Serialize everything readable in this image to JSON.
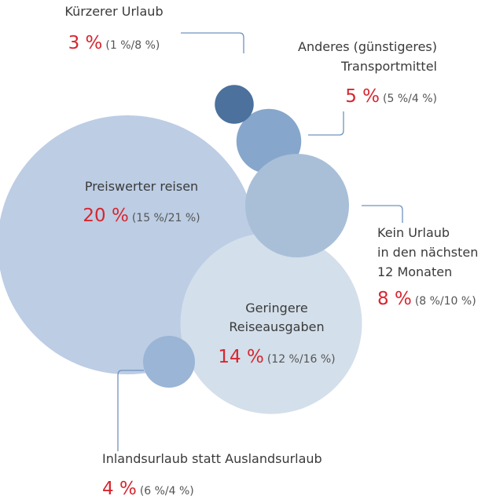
{
  "chart_data": {
    "type": "bubble",
    "items": [
      {
        "label": [
          "Preiswerter reisen"
        ],
        "value": 20,
        "value_label": "20 %",
        "detail": "(15 %/21 %)",
        "color": "#bccde4"
      },
      {
        "label": [
          "Geringere",
          "Reiseausgaben"
        ],
        "value": 14,
        "value_label": "14 %",
        "detail": "(12 %/16 %)",
        "color": "#d3dfea"
      },
      {
        "label": [
          "Anderes (günstigeres)",
          "Transportmittel"
        ],
        "value": 5,
        "value_label": "5 %",
        "detail": "(5 %/4 %)",
        "color": "#87a6cc"
      },
      {
        "label": [
          "Kürzerer Urlaub"
        ],
        "value": 3,
        "value_label": "3 %",
        "detail": "(1 %/8 %)",
        "color": "#4b719c"
      },
      {
        "label": [
          "Kein Urlaub",
          "in den nächsten",
          "12 Monaten"
        ],
        "value": 8,
        "value_label": "8 %",
        "detail": "(8 %/10 %)",
        "color": "#a8bfd7"
      },
      {
        "label": [
          "Inlandsurlaub statt Auslandsurlaub"
        ],
        "value": 4,
        "value_label": "4 %",
        "detail": "(6 %/4 %)",
        "color": "#9ab5d6"
      }
    ]
  }
}
